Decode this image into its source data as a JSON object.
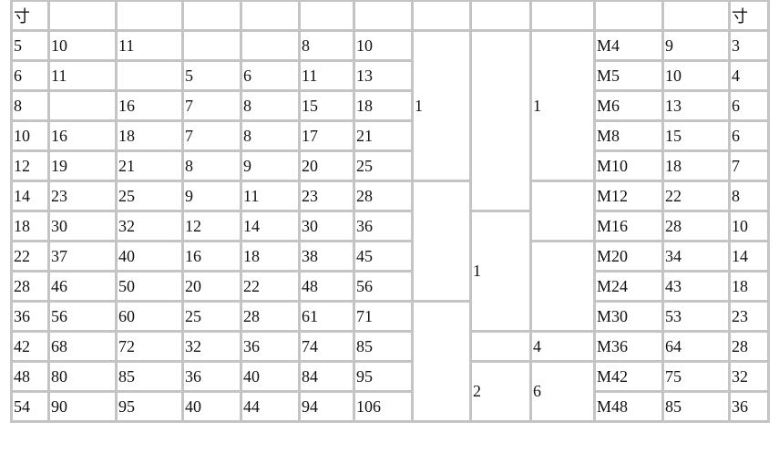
{
  "header": [
    "寸",
    "",
    "",
    "",
    "",
    "",
    "",
    "",
    "",
    "",
    "",
    "",
    "",
    "寸"
  ],
  "rows": [
    [
      {
        "t": "5"
      },
      {
        "t": "10"
      },
      {
        "t": "11"
      },
      {
        "t": ""
      },
      {
        "t": ""
      },
      {
        "t": "8"
      },
      {
        "t": "10"
      },
      {
        "t": "1",
        "rs": 5
      },
      {
        "t": "",
        "rs": 6
      },
      {
        "t": "1",
        "rs": 5
      },
      {
        "t": "M4"
      },
      {
        "t": "9"
      },
      {
        "t": "3"
      }
    ],
    [
      {
        "t": "6"
      },
      {
        "t": "11"
      },
      {
        "t": ""
      },
      {
        "t": "5"
      },
      {
        "t": "6"
      },
      {
        "t": "11"
      },
      {
        "t": "13"
      },
      {
        "t": "M5"
      },
      {
        "t": "10"
      },
      {
        "t": "4"
      }
    ],
    [
      {
        "t": "8"
      },
      {
        "t": ""
      },
      {
        "t": "16"
      },
      {
        "t": "7"
      },
      {
        "t": "8"
      },
      {
        "t": "15"
      },
      {
        "t": "18"
      },
      {
        "t": "M6"
      },
      {
        "t": "13"
      },
      {
        "t": "6"
      }
    ],
    [
      {
        "t": "10"
      },
      {
        "t": "16"
      },
      {
        "t": "18"
      },
      {
        "t": "7"
      },
      {
        "t": "8"
      },
      {
        "t": "17"
      },
      {
        "t": "21"
      },
      {
        "t": "M8"
      },
      {
        "t": "15"
      },
      {
        "t": "6"
      }
    ],
    [
      {
        "t": "12"
      },
      {
        "t": "19"
      },
      {
        "t": "21"
      },
      {
        "t": "8"
      },
      {
        "t": "9"
      },
      {
        "t": "20"
      },
      {
        "t": "25"
      },
      {
        "t": "M10"
      },
      {
        "t": "18"
      },
      {
        "t": "7"
      }
    ],
    [
      {
        "t": "14"
      },
      {
        "t": "23"
      },
      {
        "t": "25"
      },
      {
        "t": "9"
      },
      {
        "t": "11"
      },
      {
        "t": "23"
      },
      {
        "t": "28"
      },
      {
        "t": "",
        "rs": 4
      },
      {
        "t": "",
        "rs": 2
      },
      {
        "t": "M12"
      },
      {
        "t": "22"
      },
      {
        "t": "8"
      }
    ],
    [
      {
        "t": "18"
      },
      {
        "t": "30"
      },
      {
        "t": "32"
      },
      {
        "t": "12"
      },
      {
        "t": "14"
      },
      {
        "t": "30"
      },
      {
        "t": "36"
      },
      {
        "t": "1",
        "rs": 4
      },
      {
        "t": "M16"
      },
      {
        "t": "28"
      },
      {
        "t": "10"
      }
    ],
    [
      {
        "t": "22"
      },
      {
        "t": "37"
      },
      {
        "t": "40"
      },
      {
        "t": "16"
      },
      {
        "t": "18"
      },
      {
        "t": "38"
      },
      {
        "t": "45"
      },
      {
        "t": "",
        "rs": 3
      },
      {
        "t": "M20"
      },
      {
        "t": "34"
      },
      {
        "t": "14"
      }
    ],
    [
      {
        "t": "28"
      },
      {
        "t": "46"
      },
      {
        "t": "50"
      },
      {
        "t": "20"
      },
      {
        "t": "22"
      },
      {
        "t": "48"
      },
      {
        "t": "56"
      },
      {
        "t": "M24"
      },
      {
        "t": "43"
      },
      {
        "t": "18"
      }
    ],
    [
      {
        "t": "36"
      },
      {
        "t": "56"
      },
      {
        "t": "60"
      },
      {
        "t": "25"
      },
      {
        "t": "28"
      },
      {
        "t": "61"
      },
      {
        "t": "71"
      },
      {
        "t": "",
        "rs": 4
      },
      {
        "t": "M30"
      },
      {
        "t": "53"
      },
      {
        "t": "23"
      }
    ],
    [
      {
        "t": "42"
      },
      {
        "t": "68"
      },
      {
        "t": "72"
      },
      {
        "t": "32"
      },
      {
        "t": "36"
      },
      {
        "t": "74"
      },
      {
        "t": "85"
      },
      {
        "t": ""
      },
      {
        "t": "4"
      },
      {
        "t": "M36"
      },
      {
        "t": "64"
      },
      {
        "t": "28"
      }
    ],
    [
      {
        "t": "48"
      },
      {
        "t": "80"
      },
      {
        "t": "85"
      },
      {
        "t": "36"
      },
      {
        "t": "40"
      },
      {
        "t": "84"
      },
      {
        "t": "95"
      },
      {
        "t": "2",
        "rs": 2
      },
      {
        "t": "6",
        "rs": 2
      },
      {
        "t": "M42"
      },
      {
        "t": "75"
      },
      {
        "t": "32"
      }
    ],
    [
      {
        "t": "54"
      },
      {
        "t": "90"
      },
      {
        "t": "95"
      },
      {
        "t": "40"
      },
      {
        "t": "44"
      },
      {
        "t": "94"
      },
      {
        "t": "106"
      },
      {
        "t": "M48"
      },
      {
        "t": "85"
      },
      {
        "t": "36"
      }
    ]
  ]
}
